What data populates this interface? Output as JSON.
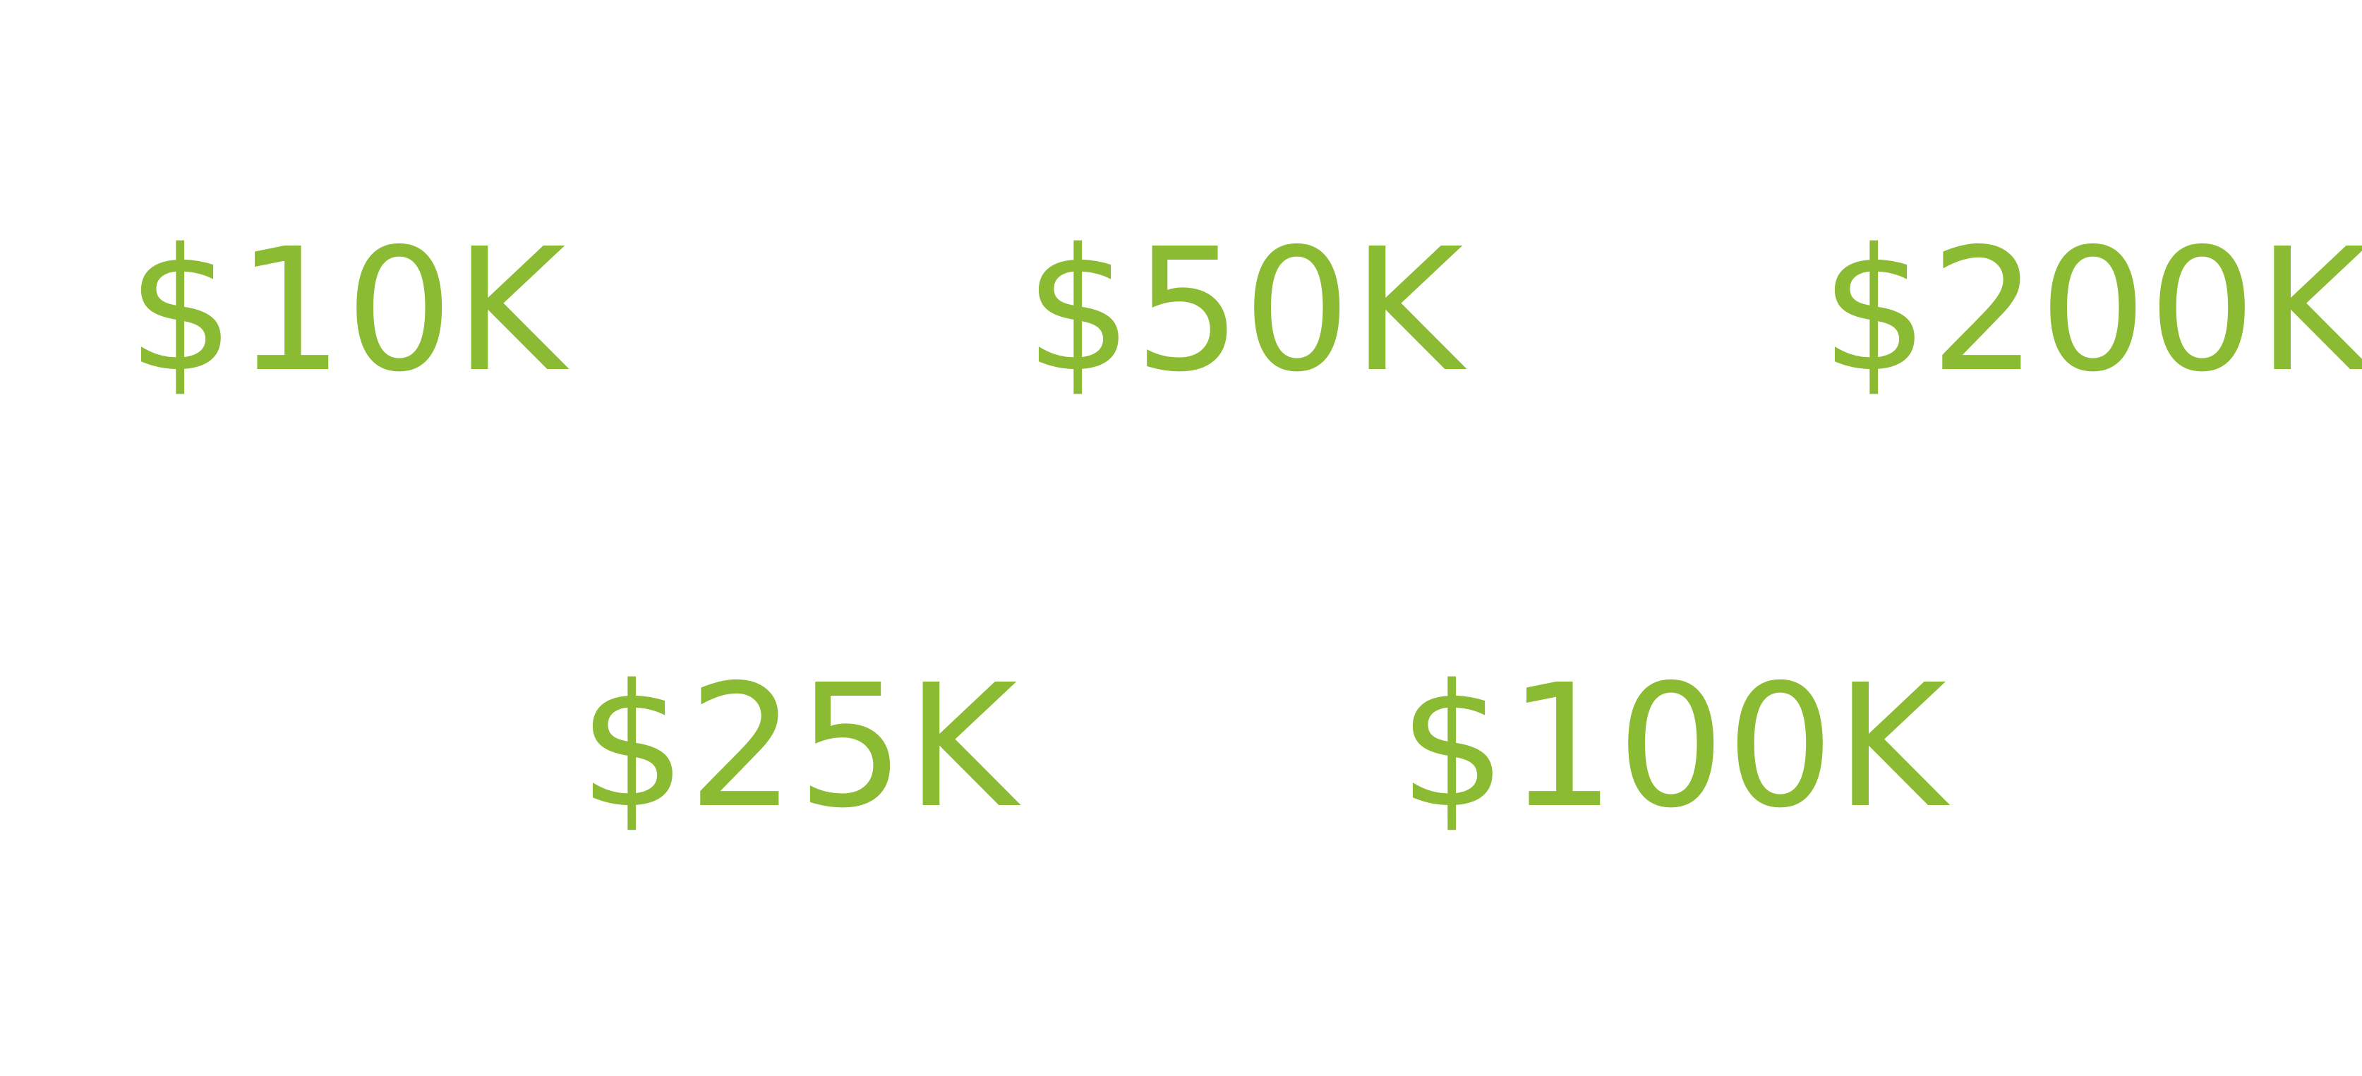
{
  "amounts": {
    "a10k": "$10K",
    "a50k": "$50K",
    "a200k": "$200K",
    "a25k": "$25K",
    "a100k": "$100K"
  },
  "colors": {
    "amount_text": "#8bbb32",
    "background": "#ffffff"
  }
}
